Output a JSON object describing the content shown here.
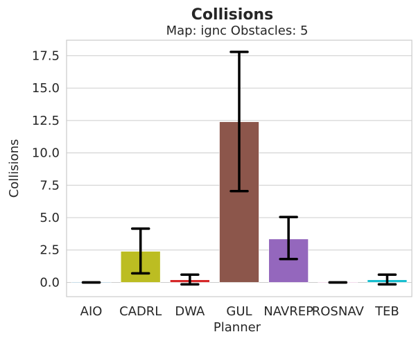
{
  "chart_data": {
    "type": "bar",
    "title": "Collisions",
    "subtitle": "Map: ignc Obstacles: 5",
    "xlabel": "Planner",
    "ylabel": "Collisions",
    "categories": [
      "AIO",
      "CADRL",
      "DWA",
      "GUL",
      "NAVREP",
      "ROSNAV",
      "TEB"
    ],
    "values": [
      0.0,
      2.4,
      0.2,
      12.4,
      3.35,
      0.0,
      0.2
    ],
    "error_low": [
      0.0,
      0.7,
      -0.15,
      7.05,
      1.8,
      0.0,
      -0.15
    ],
    "error_high": [
      0.0,
      4.15,
      0.6,
      17.8,
      5.05,
      0.0,
      0.6
    ],
    "colors": [
      "#1f77b4",
      "#bcbd22",
      "#d62728",
      "#8c564b",
      "#9467bd",
      "#e377c2",
      "#17becf"
    ],
    "ylim": [
      -1.1,
      18.7
    ],
    "yticks": [
      0.0,
      2.5,
      5.0,
      7.5,
      10.0,
      12.5,
      15.0,
      17.5
    ],
    "ytick_labels": [
      "0.0",
      "2.5",
      "5.0",
      "7.5",
      "10.0",
      "12.5",
      "15.0",
      "17.5"
    ],
    "grid": "horizontal",
    "style": "whitegrid"
  }
}
